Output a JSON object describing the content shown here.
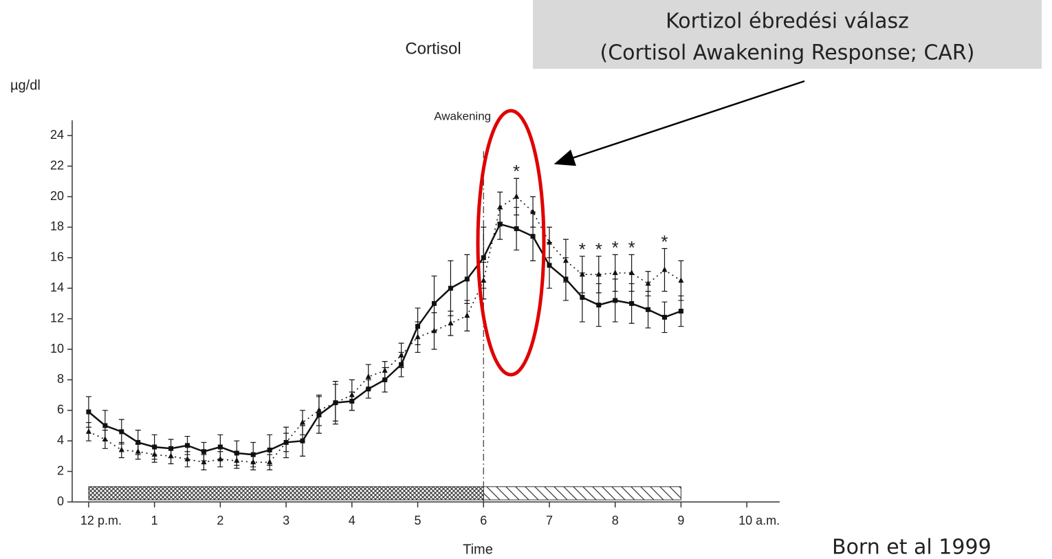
{
  "chart_data": {
    "type": "line",
    "title": "Cortisol",
    "ylabel": "µg/dl",
    "xlabel": "Time",
    "xlim": [
      -0.25,
      10.5
    ],
    "ylim": [
      0,
      25
    ],
    "yticks": [
      0,
      2,
      4,
      6,
      8,
      10,
      12,
      14,
      16,
      18,
      20,
      22,
      24
    ],
    "xticks": [
      {
        "value": 0,
        "label": "12 p.m."
      },
      1,
      2,
      3,
      4,
      5,
      6,
      7,
      8,
      9,
      {
        "value": 10,
        "label": "10 a.m."
      }
    ],
    "x": [
      0,
      0.25,
      0.5,
      0.75,
      1,
      1.25,
      1.5,
      1.75,
      2,
      2.25,
      2.5,
      2.75,
      3,
      3.25,
      3.5,
      3.75,
      4,
      4.25,
      4.5,
      4.75,
      5,
      5.25,
      5.5,
      5.75,
      6,
      6.25,
      6.5,
      6.75,
      7,
      7.25,
      7.5,
      7.75,
      8,
      8.25,
      8.5,
      8.75,
      9
    ],
    "series": [
      {
        "color": "#111111",
        "line_style": "solid",
        "marker": "square",
        "values": [
          5.9,
          5.0,
          4.6,
          3.9,
          3.6,
          3.5,
          3.7,
          3.3,
          3.6,
          3.2,
          3.1,
          3.4,
          3.9,
          4.0,
          5.7,
          6.5,
          6.6,
          7.4,
          8.0,
          9.0,
          11.5,
          13.0,
          14.0,
          14.6,
          16.0,
          18.2,
          17.9,
          17.4,
          15.5,
          14.6,
          13.4,
          12.9,
          13.2,
          13.0,
          12.6,
          12.1,
          12.5
        ],
        "errors": [
          1.0,
          1.0,
          0.8,
          0.8,
          0.8,
          0.6,
          0.6,
          0.6,
          0.8,
          0.8,
          0.8,
          1.0,
          1.0,
          1.0,
          1.2,
          1.2,
          0.6,
          0.6,
          0.8,
          0.8,
          1.2,
          1.8,
          1.8,
          1.6,
          2.0,
          1.0,
          1.4,
          1.6,
          1.5,
          1.4,
          1.6,
          1.4,
          1.4,
          1.3,
          1.2,
          1.0,
          1.0
        ]
      },
      {
        "color": "#111111",
        "line_style": "dotted",
        "marker": "triangle",
        "values": [
          4.6,
          4.1,
          3.4,
          3.3,
          3.1,
          3.0,
          2.8,
          2.6,
          2.8,
          2.7,
          2.6,
          2.6,
          3.9,
          5.2,
          6.0,
          6.5,
          7.0,
          8.2,
          8.6,
          9.6,
          10.8,
          11.2,
          11.7,
          12.2,
          14.5,
          19.3,
          20.0,
          19.0,
          17.0,
          15.8,
          14.9,
          14.9,
          15.0,
          15.0,
          14.3,
          15.2,
          14.5
        ],
        "errors": [
          0.6,
          0.6,
          0.5,
          0.5,
          0.5,
          0.5,
          0.5,
          0.5,
          0.5,
          0.5,
          0.5,
          0.5,
          0.6,
          0.8,
          1.0,
          1.4,
          1.0,
          0.8,
          0.6,
          0.8,
          1.0,
          1.2,
          0.8,
          1.0,
          1.2,
          1.0,
          1.2,
          1.0,
          1.0,
          1.4,
          1.2,
          1.2,
          1.2,
          1.2,
          0.8,
          1.4,
          1.3
        ]
      }
    ],
    "significance_markers": [
      {
        "x": 6.5,
        "text": "*"
      },
      {
        "x": 7.5,
        "text": "*"
      },
      {
        "x": 7.75,
        "text": "*"
      },
      {
        "x": 8,
        "text": "*"
      },
      {
        "x": 8.25,
        "text": "*"
      },
      {
        "x": 8.75,
        "text": "*"
      }
    ],
    "periods": [
      {
        "start": 0,
        "end": 6,
        "height": 1,
        "pattern": "cross"
      },
      {
        "start": 6,
        "end": 9,
        "height": 1,
        "pattern": "diagonal"
      }
    ],
    "event": {
      "x": 6,
      "label": "Awakening"
    },
    "callout": {
      "line1": "Kortizol ébredési válasz",
      "line2": "(Cortisol Awakening Response; CAR)"
    },
    "citation": "Born et al 1999"
  }
}
